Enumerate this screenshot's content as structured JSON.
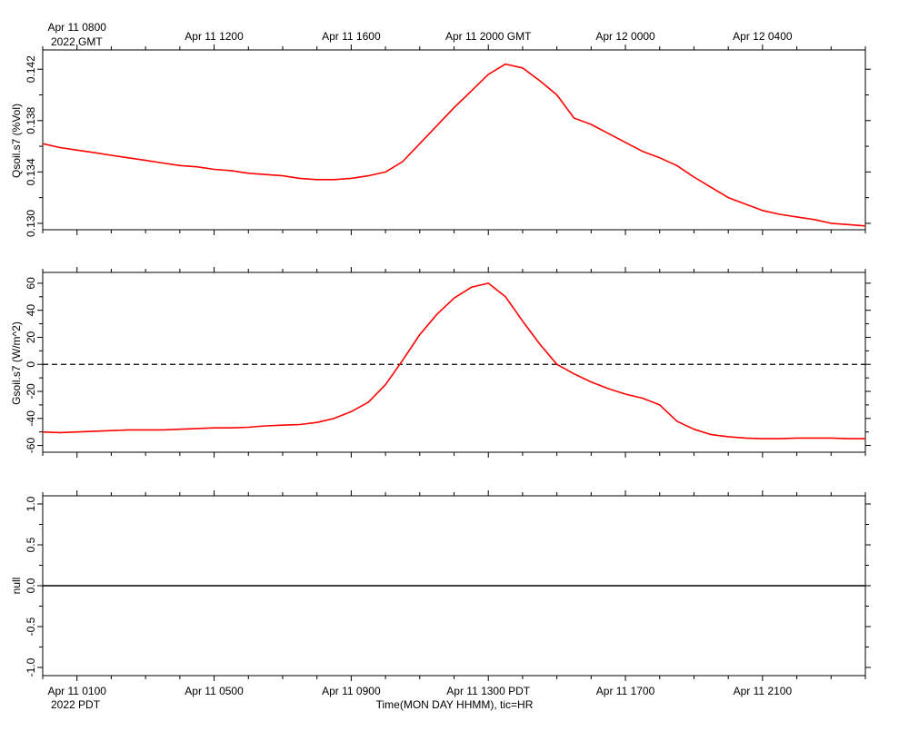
{
  "chart_data": [
    {
      "type": "line",
      "ylabel": "Qsoil.s7 (%Vol)",
      "ylim": [
        0.1295,
        0.1435
      ],
      "yticks": [
        0.13,
        0.134,
        0.138,
        0.142
      ],
      "ytick_labels": [
        "0.130",
        "0.134",
        "0.138",
        "0.142"
      ],
      "xlim": [
        -1.0,
        23.0
      ],
      "top_axis_labels": [
        {
          "x": 0,
          "label": "Apr 11 0800"
        },
        {
          "x": 4,
          "label": "Apr 11 1200"
        },
        {
          "x": 8,
          "label": "Apr 11 1600"
        },
        {
          "x": 12,
          "label": "Apr 11 2000 GMT"
        },
        {
          "x": 16,
          "label": "Apr 12 0000"
        },
        {
          "x": 20,
          "label": "Apr 12 0400"
        }
      ],
      "top_axis_year": "2022 GMT",
      "series": [
        {
          "color": "#ff0000",
          "x": [
            -1.0,
            -0.5,
            0,
            0.5,
            1,
            1.5,
            2,
            2.5,
            3,
            3.5,
            4,
            4.5,
            5,
            5.5,
            6,
            6.5,
            7,
            7.5,
            8,
            8.5,
            9,
            9.5,
            10,
            10.5,
            11,
            11.5,
            12,
            12.5,
            13,
            13.5,
            14,
            14.5,
            15,
            15.5,
            16,
            16.5,
            17,
            17.5,
            18,
            18.5,
            19,
            19.5,
            20,
            20.5,
            21,
            21.5,
            22,
            22.5,
            23.0
          ],
          "y": [
            0.1362,
            0.1359,
            0.1357,
            0.1355,
            0.1353,
            0.1351,
            0.1349,
            0.1347,
            0.1345,
            0.1344,
            0.1342,
            0.1341,
            0.1339,
            0.1338,
            0.1337,
            0.1335,
            0.1334,
            0.1334,
            0.1335,
            0.1337,
            0.134,
            0.1348,
            0.1362,
            0.1376,
            0.139,
            0.1403,
            0.1416,
            0.1424,
            0.1421,
            0.1411,
            0.14,
            0.1382,
            0.1377,
            0.137,
            0.1363,
            0.1356,
            0.1351,
            0.1345,
            0.1336,
            0.1328,
            0.132,
            0.1315,
            0.131,
            0.1307,
            0.1305,
            0.1303,
            0.13,
            0.1299,
            0.1298
          ]
        }
      ]
    },
    {
      "type": "line",
      "ylabel": "Gsoil.s7 (W/m^2)",
      "ylim": [
        -65,
        68
      ],
      "yticks": [
        -60,
        -40,
        -20,
        0,
        20,
        40,
        60
      ],
      "ytick_labels": [
        "-60",
        "-40",
        "-20",
        "0",
        "20",
        "40",
        "60"
      ],
      "xlim": [
        -1.0,
        23.0
      ],
      "reference_line": {
        "y": 0,
        "style": "dashed"
      },
      "series": [
        {
          "color": "#ff0000",
          "x": [
            -1.0,
            -0.5,
            0,
            0.5,
            1,
            1.5,
            2,
            2.5,
            3,
            3.5,
            4,
            4.5,
            5,
            5.5,
            6,
            6.5,
            7,
            7.5,
            8,
            8.5,
            9,
            9.5,
            10,
            10.5,
            11,
            11.5,
            12,
            12.5,
            13,
            13.5,
            14,
            14.5,
            15,
            15.5,
            16,
            16.5,
            17,
            17.5,
            18,
            18.5,
            19,
            19.5,
            20,
            20.5,
            21,
            21.5,
            22,
            22.5,
            23.0
          ],
          "y": [
            -50,
            -50.5,
            -50,
            -49.5,
            -49,
            -48.5,
            -48.5,
            -48.5,
            -48,
            -47.5,
            -47,
            -47,
            -46.5,
            -45.5,
            -45,
            -44.5,
            -43,
            -40,
            -35,
            -28,
            -15,
            3,
            22,
            37,
            49,
            57,
            60,
            50,
            32,
            15,
            0,
            -7,
            -13,
            -18,
            -22,
            -25,
            -30,
            -42,
            -48,
            -52,
            -53.5,
            -54.5,
            -55,
            -55,
            -54.5,
            -54.5,
            -54.5,
            -55,
            -55
          ]
        }
      ]
    },
    {
      "type": "line",
      "ylabel": "null",
      "ylim": [
        -1.1,
        1.1
      ],
      "yticks": [
        -1.0,
        -0.5,
        0.0,
        0.5,
        1.0
      ],
      "ytick_labels": [
        "-1.0",
        "-0.5",
        "0.0",
        "0.5",
        "1.0"
      ],
      "xlim": [
        -1.0,
        23.0
      ],
      "series": [
        {
          "color": "#000000",
          "x": [
            -1.0,
            23.0
          ],
          "y": [
            0,
            0
          ]
        }
      ],
      "bottom_axis_labels": [
        {
          "x": 0,
          "label": "Apr 11 0100"
        },
        {
          "x": 4,
          "label": "Apr 11 0500"
        },
        {
          "x": 8,
          "label": "Apr 11 0900"
        },
        {
          "x": 12,
          "label": "Apr 11 1300 PDT"
        },
        {
          "x": 16,
          "label": "Apr 11 1700"
        },
        {
          "x": 20,
          "label": "Apr 11 2100"
        }
      ],
      "bottom_axis_year": "2022 PDT",
      "xlabel": "Time(MON DAY HHMM), tic=HR"
    }
  ]
}
